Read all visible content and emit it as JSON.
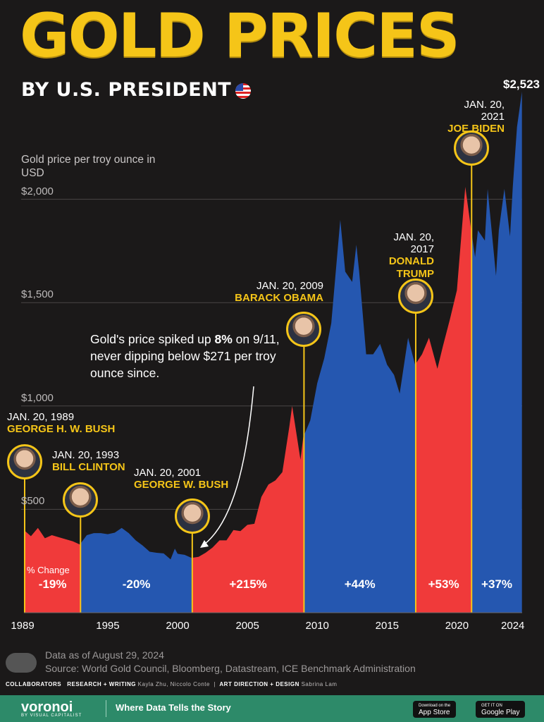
{
  "header": {
    "title": "GOLD PRICES",
    "subtitle": "BY U.S. PRESIDENT",
    "flag_icon": "us-flag-icon"
  },
  "colors": {
    "gold": "#f5c518",
    "republican": "#f03a3a",
    "democrat": "#2557b0",
    "background": "#1b1919"
  },
  "chart_data": {
    "type": "area",
    "ylabel": "Gold price per troy ounce in USD",
    "yticks": [
      "$500",
      "$1,000",
      "$1,500",
      "$2,000"
    ],
    "ytick_values": [
      500,
      1000,
      1500,
      2000
    ],
    "ylim": [
      0,
      2600
    ],
    "xlim": [
      1989.0,
      2024.67
    ],
    "xticks": [
      "1989",
      "1995",
      "2000",
      "2005",
      "2010",
      "2015",
      "2020",
      "2024"
    ],
    "xtick_values": [
      1989,
      1995,
      2000,
      2005,
      2010,
      2015,
      2020,
      2024
    ],
    "grid": true,
    "series": [
      {
        "x": 1989.0,
        "y": 400
      },
      {
        "x": 1989.5,
        "y": 370
      },
      {
        "x": 1990.0,
        "y": 410
      },
      {
        "x": 1990.5,
        "y": 360
      },
      {
        "x": 1991.0,
        "y": 375
      },
      {
        "x": 1991.5,
        "y": 365
      },
      {
        "x": 1992.0,
        "y": 355
      },
      {
        "x": 1992.5,
        "y": 345
      },
      {
        "x": 1993.0,
        "y": 330
      },
      {
        "x": 1993.5,
        "y": 375
      },
      {
        "x": 1994.0,
        "y": 385
      },
      {
        "x": 1994.5,
        "y": 385
      },
      {
        "x": 1995.0,
        "y": 380
      },
      {
        "x": 1995.5,
        "y": 387
      },
      {
        "x": 1996.0,
        "y": 410
      },
      {
        "x": 1996.5,
        "y": 385
      },
      {
        "x": 1997.0,
        "y": 350
      },
      {
        "x": 1997.5,
        "y": 325
      },
      {
        "x": 1998.0,
        "y": 295
      },
      {
        "x": 1998.5,
        "y": 290
      },
      {
        "x": 1999.0,
        "y": 287
      },
      {
        "x": 1999.5,
        "y": 258
      },
      {
        "x": 1999.8,
        "y": 310
      },
      {
        "x": 2000.0,
        "y": 285
      },
      {
        "x": 2000.5,
        "y": 280
      },
      {
        "x": 2001.0,
        "y": 265
      },
      {
        "x": 2001.5,
        "y": 270
      },
      {
        "x": 2002.0,
        "y": 290
      },
      {
        "x": 2002.5,
        "y": 315
      },
      {
        "x": 2003.0,
        "y": 350
      },
      {
        "x": 2003.5,
        "y": 350
      },
      {
        "x": 2004.0,
        "y": 400
      },
      {
        "x": 2004.5,
        "y": 395
      },
      {
        "x": 2005.0,
        "y": 425
      },
      {
        "x": 2005.5,
        "y": 430
      },
      {
        "x": 2006.0,
        "y": 560
      },
      {
        "x": 2006.5,
        "y": 620
      },
      {
        "x": 2007.0,
        "y": 640
      },
      {
        "x": 2007.5,
        "y": 680
      },
      {
        "x": 2008.0,
        "y": 900
      },
      {
        "x": 2008.2,
        "y": 1000
      },
      {
        "x": 2008.8,
        "y": 740
      },
      {
        "x": 2009.0,
        "y": 850
      },
      {
        "x": 2009.5,
        "y": 930
      },
      {
        "x": 2010.0,
        "y": 1110
      },
      {
        "x": 2010.5,
        "y": 1230
      },
      {
        "x": 2011.0,
        "y": 1400
      },
      {
        "x": 2011.65,
        "y": 1900
      },
      {
        "x": 2012.0,
        "y": 1650
      },
      {
        "x": 2012.5,
        "y": 1600
      },
      {
        "x": 2012.8,
        "y": 1780
      },
      {
        "x": 2013.0,
        "y": 1650
      },
      {
        "x": 2013.5,
        "y": 1250
      },
      {
        "x": 2014.0,
        "y": 1250
      },
      {
        "x": 2014.5,
        "y": 1300
      },
      {
        "x": 2015.0,
        "y": 1200
      },
      {
        "x": 2015.5,
        "y": 1150
      },
      {
        "x": 2015.9,
        "y": 1060
      },
      {
        "x": 2016.5,
        "y": 1330
      },
      {
        "x": 2017.0,
        "y": 1200
      },
      {
        "x": 2017.5,
        "y": 1250
      },
      {
        "x": 2018.0,
        "y": 1330
      },
      {
        "x": 2018.6,
        "y": 1180
      },
      {
        "x": 2019.0,
        "y": 1290
      },
      {
        "x": 2019.5,
        "y": 1420
      },
      {
        "x": 2020.0,
        "y": 1560
      },
      {
        "x": 2020.6,
        "y": 2060
      },
      {
        "x": 2021.0,
        "y": 1860
      },
      {
        "x": 2021.3,
        "y": 1720
      },
      {
        "x": 2021.5,
        "y": 1850
      },
      {
        "x": 2022.0,
        "y": 1800
      },
      {
        "x": 2022.2,
        "y": 2050
      },
      {
        "x": 2022.8,
        "y": 1630
      },
      {
        "x": 2023.0,
        "y": 1850
      },
      {
        "x": 2023.4,
        "y": 2050
      },
      {
        "x": 2023.8,
        "y": 1820
      },
      {
        "x": 2024.0,
        "y": 2060
      },
      {
        "x": 2024.3,
        "y": 2350
      },
      {
        "x": 2024.66,
        "y": 2523
      }
    ],
    "terms": [
      {
        "start": 1989.05,
        "end": 1993.05,
        "party": "republican",
        "change": "-19%"
      },
      {
        "start": 1993.05,
        "end": 2001.05,
        "party": "democrat",
        "change": "-20%"
      },
      {
        "start": 2001.05,
        "end": 2009.05,
        "party": "republican",
        "change": "+215%"
      },
      {
        "start": 2009.05,
        "end": 2017.05,
        "party": "democrat",
        "change": "+44%"
      },
      {
        "start": 2017.05,
        "end": 2021.05,
        "party": "republican",
        "change": "+53%"
      },
      {
        "start": 2021.05,
        "end": 2024.66,
        "party": "democrat",
        "change": "+37%"
      }
    ],
    "change_label": "% Change",
    "max_label": "$2,523",
    "presidents": [
      {
        "date": "JAN. 20, 1989",
        "name": "GEORGE H. W. BUSH",
        "icon": "george-hw-bush-portrait-icon"
      },
      {
        "date": "JAN. 20, 1993",
        "name": "BILL CLINTON",
        "icon": "bill-clinton-portrait-icon"
      },
      {
        "date": "JAN. 20, 2001",
        "name": "GEORGE W. BUSH",
        "icon": "george-w-bush-portrait-icon"
      },
      {
        "date": "JAN. 20, 2009",
        "name": "BARACK OBAMA",
        "icon": "barack-obama-portrait-icon"
      },
      {
        "date": "JAN. 20, 2017",
        "name": "DONALD TRUMP",
        "icon": "donald-trump-portrait-icon"
      },
      {
        "date": "JAN. 20, 2021",
        "name": "JOE BIDEN",
        "icon": "joe-biden-portrait-icon"
      }
    ],
    "annotation": {
      "pre": "Gold's price spiked up ",
      "bold": "8%",
      "post": " on 9/11, never dipping below $271 per troy ounce since."
    }
  },
  "footer": {
    "data_date": "Data as of August 29, 2024",
    "source": "Source: World Gold Council, Bloomberg, Datastream, ICE Benchmark Administration",
    "collaborators_label": "COLLABORATORS",
    "research_label": "RESEARCH + WRITING",
    "research_names": "Kayla Zhu, Niccolo Conte",
    "art_label": "ART DIRECTION + DESIGN",
    "art_names": "Sabrina Lam",
    "brand": "voronoi",
    "brand_sub": "BY VISUAL CAPITALIST",
    "tagline": "Where Data Tells the Story",
    "app_store_small": "Download on the",
    "app_store": "App Store",
    "google_play_small": "GET IT ON",
    "google_play": "Google Play"
  }
}
